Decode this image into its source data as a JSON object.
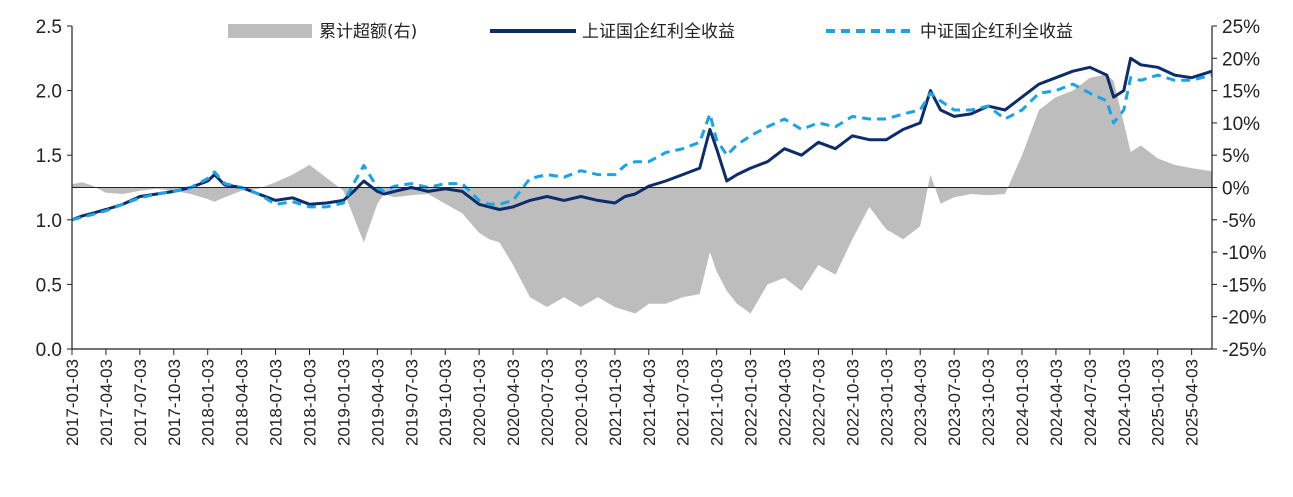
{
  "chart_data": {
    "type": "line+area",
    "title": "",
    "xlabel": "",
    "ylabel_left": "",
    "ylabel_right": "",
    "y_left": {
      "range": [
        0.0,
        2.5
      ],
      "ticks": [
        "0.0",
        "0.5",
        "1.0",
        "1.5",
        "2.0",
        "2.5"
      ]
    },
    "y_right": {
      "range": [
        -25,
        25
      ],
      "ticks": [
        "25%",
        "20%",
        "15%",
        "10%",
        "5%",
        "0%",
        "-5%",
        "-10%",
        "-15%",
        "-20%",
        "-25%"
      ]
    },
    "x_ticks": [
      "2017-01-03",
      "2017-04-03",
      "2017-07-03",
      "2017-10-03",
      "2018-01-03",
      "2018-04-03",
      "2018-07-03",
      "2018-10-03",
      "2019-01-03",
      "2019-04-03",
      "2019-07-03",
      "2019-10-03",
      "2020-01-03",
      "2020-04-03",
      "2020-07-03",
      "2020-10-03",
      "2021-01-03",
      "2021-04-03",
      "2021-07-03",
      "2021-10-03",
      "2022-01-03",
      "2022-04-03",
      "2022-07-03",
      "2022-10-03",
      "2023-01-03",
      "2023-04-03",
      "2023-07-03",
      "2023-10-03",
      "2024-01-03",
      "2024-04-03",
      "2024-07-03",
      "2024-10-03",
      "2025-01-03",
      "2025-04-03"
    ],
    "x_end": 33.6,
    "legend": {
      "position": "top",
      "area_label": "累计超额(右)",
      "line1_label": "上证国企红利全收益",
      "line2_label": "中证国企红利全收益"
    },
    "colors": {
      "area": "#bdbdbd",
      "line1": "#0d2c6b",
      "line2": "#1aa3e6",
      "axis": "#222222"
    },
    "series": [
      {
        "name": "上证国企红利全收益",
        "axis": "left",
        "style": "solid",
        "x": [
          0,
          0.3,
          0.6,
          1,
          1.5,
          2,
          2.5,
          3,
          3.5,
          4,
          4.2,
          4.5,
          5,
          5.5,
          6,
          6.5,
          7,
          7.5,
          8,
          8.3,
          8.6,
          9,
          9.2,
          9.5,
          10,
          10.5,
          11,
          11.5,
          12,
          12.3,
          12.6,
          13,
          13.5,
          14,
          14.5,
          15,
          15.5,
          16,
          16.3,
          16.6,
          17,
          17.5,
          18,
          18.5,
          18.8,
          19,
          19.3,
          19.6,
          20,
          20.5,
          21,
          21.5,
          22,
          22.5,
          23,
          23.5,
          24,
          24.5,
          25,
          25.3,
          25.6,
          26,
          26.5,
          27,
          27.5,
          28,
          28.5,
          29,
          29.5,
          30,
          30.5,
          30.7,
          31,
          31.2,
          31.5,
          32,
          32.5,
          33,
          33.6
        ],
        "values": [
          1.0,
          1.03,
          1.05,
          1.08,
          1.12,
          1.18,
          1.2,
          1.22,
          1.25,
          1.3,
          1.35,
          1.27,
          1.25,
          1.2,
          1.15,
          1.17,
          1.12,
          1.13,
          1.15,
          1.22,
          1.3,
          1.22,
          1.2,
          1.22,
          1.25,
          1.22,
          1.24,
          1.22,
          1.12,
          1.1,
          1.08,
          1.1,
          1.15,
          1.18,
          1.15,
          1.18,
          1.15,
          1.13,
          1.18,
          1.2,
          1.26,
          1.3,
          1.35,
          1.4,
          1.7,
          1.55,
          1.3,
          1.35,
          1.4,
          1.45,
          1.55,
          1.5,
          1.6,
          1.55,
          1.65,
          1.62,
          1.62,
          1.7,
          1.75,
          2.0,
          1.85,
          1.8,
          1.82,
          1.88,
          1.85,
          1.95,
          2.05,
          2.1,
          2.15,
          2.18,
          2.12,
          1.95,
          2.0,
          2.25,
          2.2,
          2.18,
          2.12,
          2.1,
          2.15
        ]
      },
      {
        "name": "中证国企红利全收益",
        "axis": "left",
        "style": "dashed",
        "x": [
          0,
          0.3,
          0.6,
          1,
          1.5,
          2,
          2.5,
          3,
          3.5,
          4,
          4.2,
          4.5,
          5,
          5.5,
          6,
          6.5,
          7,
          7.5,
          8,
          8.3,
          8.6,
          9,
          9.2,
          9.5,
          10,
          10.5,
          11,
          11.5,
          12,
          12.3,
          12.6,
          13,
          13.5,
          14,
          14.5,
          15,
          15.5,
          16,
          16.3,
          16.6,
          17,
          17.5,
          18,
          18.5,
          18.8,
          19,
          19.3,
          19.6,
          20,
          20.5,
          21,
          21.5,
          22,
          22.5,
          23,
          23.5,
          24,
          24.5,
          25,
          25.3,
          25.6,
          26,
          26.5,
          27,
          27.5,
          28,
          28.5,
          29,
          29.5,
          30,
          30.5,
          30.7,
          31,
          31.2,
          31.5,
          32,
          32.5,
          33,
          33.6
        ],
        "values": [
          1.0,
          1.02,
          1.04,
          1.07,
          1.12,
          1.17,
          1.2,
          1.22,
          1.25,
          1.32,
          1.37,
          1.28,
          1.25,
          1.2,
          1.12,
          1.14,
          1.1,
          1.1,
          1.13,
          1.28,
          1.42,
          1.25,
          1.22,
          1.26,
          1.28,
          1.25,
          1.28,
          1.28,
          1.15,
          1.12,
          1.12,
          1.15,
          1.32,
          1.35,
          1.33,
          1.38,
          1.35,
          1.35,
          1.42,
          1.45,
          1.45,
          1.52,
          1.55,
          1.6,
          1.82,
          1.62,
          1.5,
          1.58,
          1.65,
          1.72,
          1.78,
          1.7,
          1.75,
          1.72,
          1.8,
          1.78,
          1.78,
          1.82,
          1.85,
          1.98,
          1.92,
          1.85,
          1.85,
          1.88,
          1.78,
          1.85,
          1.98,
          2.0,
          2.05,
          1.98,
          1.92,
          1.75,
          1.85,
          2.1,
          2.08,
          2.12,
          2.08,
          2.08,
          2.12
        ]
      },
      {
        "name": "累计超额(右)",
        "axis": "right",
        "style": "area",
        "x": [
          0,
          0.3,
          0.6,
          1,
          1.5,
          2,
          2.5,
          3,
          3.5,
          4,
          4.2,
          4.5,
          5,
          5.5,
          6,
          6.5,
          7,
          7.5,
          8,
          8.3,
          8.6,
          9,
          9.2,
          9.5,
          10,
          10.5,
          11,
          11.5,
          12,
          12.3,
          12.6,
          13,
          13.5,
          14,
          14.5,
          15,
          15.5,
          16,
          16.3,
          16.6,
          17,
          17.5,
          18,
          18.5,
          18.8,
          19,
          19.3,
          19.6,
          20,
          20.5,
          21,
          21.5,
          22,
          22.5,
          23,
          23.5,
          24,
          24.5,
          25,
          25.3,
          25.6,
          26,
          26.5,
          27,
          27.5,
          28,
          28.5,
          29,
          29.5,
          30,
          30.5,
          30.7,
          31,
          31.2,
          31.5,
          32,
          32.5,
          33,
          33.6
        ],
        "values": [
          0.5,
          0.8,
          0.3,
          -0.8,
          -1.0,
          -0.5,
          -0.2,
          -0.5,
          -1.0,
          -1.8,
          -2.2,
          -1.5,
          -0.5,
          -0.2,
          0.8,
          2.0,
          3.5,
          1.5,
          -0.5,
          -4.5,
          -8.5,
          -2.5,
          -1.0,
          -1.5,
          -1.2,
          -1.0,
          -2.5,
          -4.0,
          -7.0,
          -8.0,
          -8.5,
          -12.0,
          -17.0,
          -18.5,
          -17.0,
          -18.5,
          -17.0,
          -18.5,
          -19.0,
          -19.5,
          -18.0,
          -18.0,
          -17.0,
          -16.5,
          -10.0,
          -13.0,
          -16.0,
          -18.0,
          -19.5,
          -15.0,
          -14.0,
          -16.0,
          -12.0,
          -13.5,
          -8.0,
          -3.0,
          -6.5,
          -8.0,
          -6.0,
          2.0,
          -2.5,
          -1.5,
          -1.0,
          -1.2,
          -1.0,
          5.0,
          12.0,
          14.0,
          15.0,
          17.0,
          17.5,
          16.5,
          10.0,
          5.5,
          6.5,
          4.5,
          3.5,
          3.0,
          2.5
        ]
      }
    ]
  }
}
